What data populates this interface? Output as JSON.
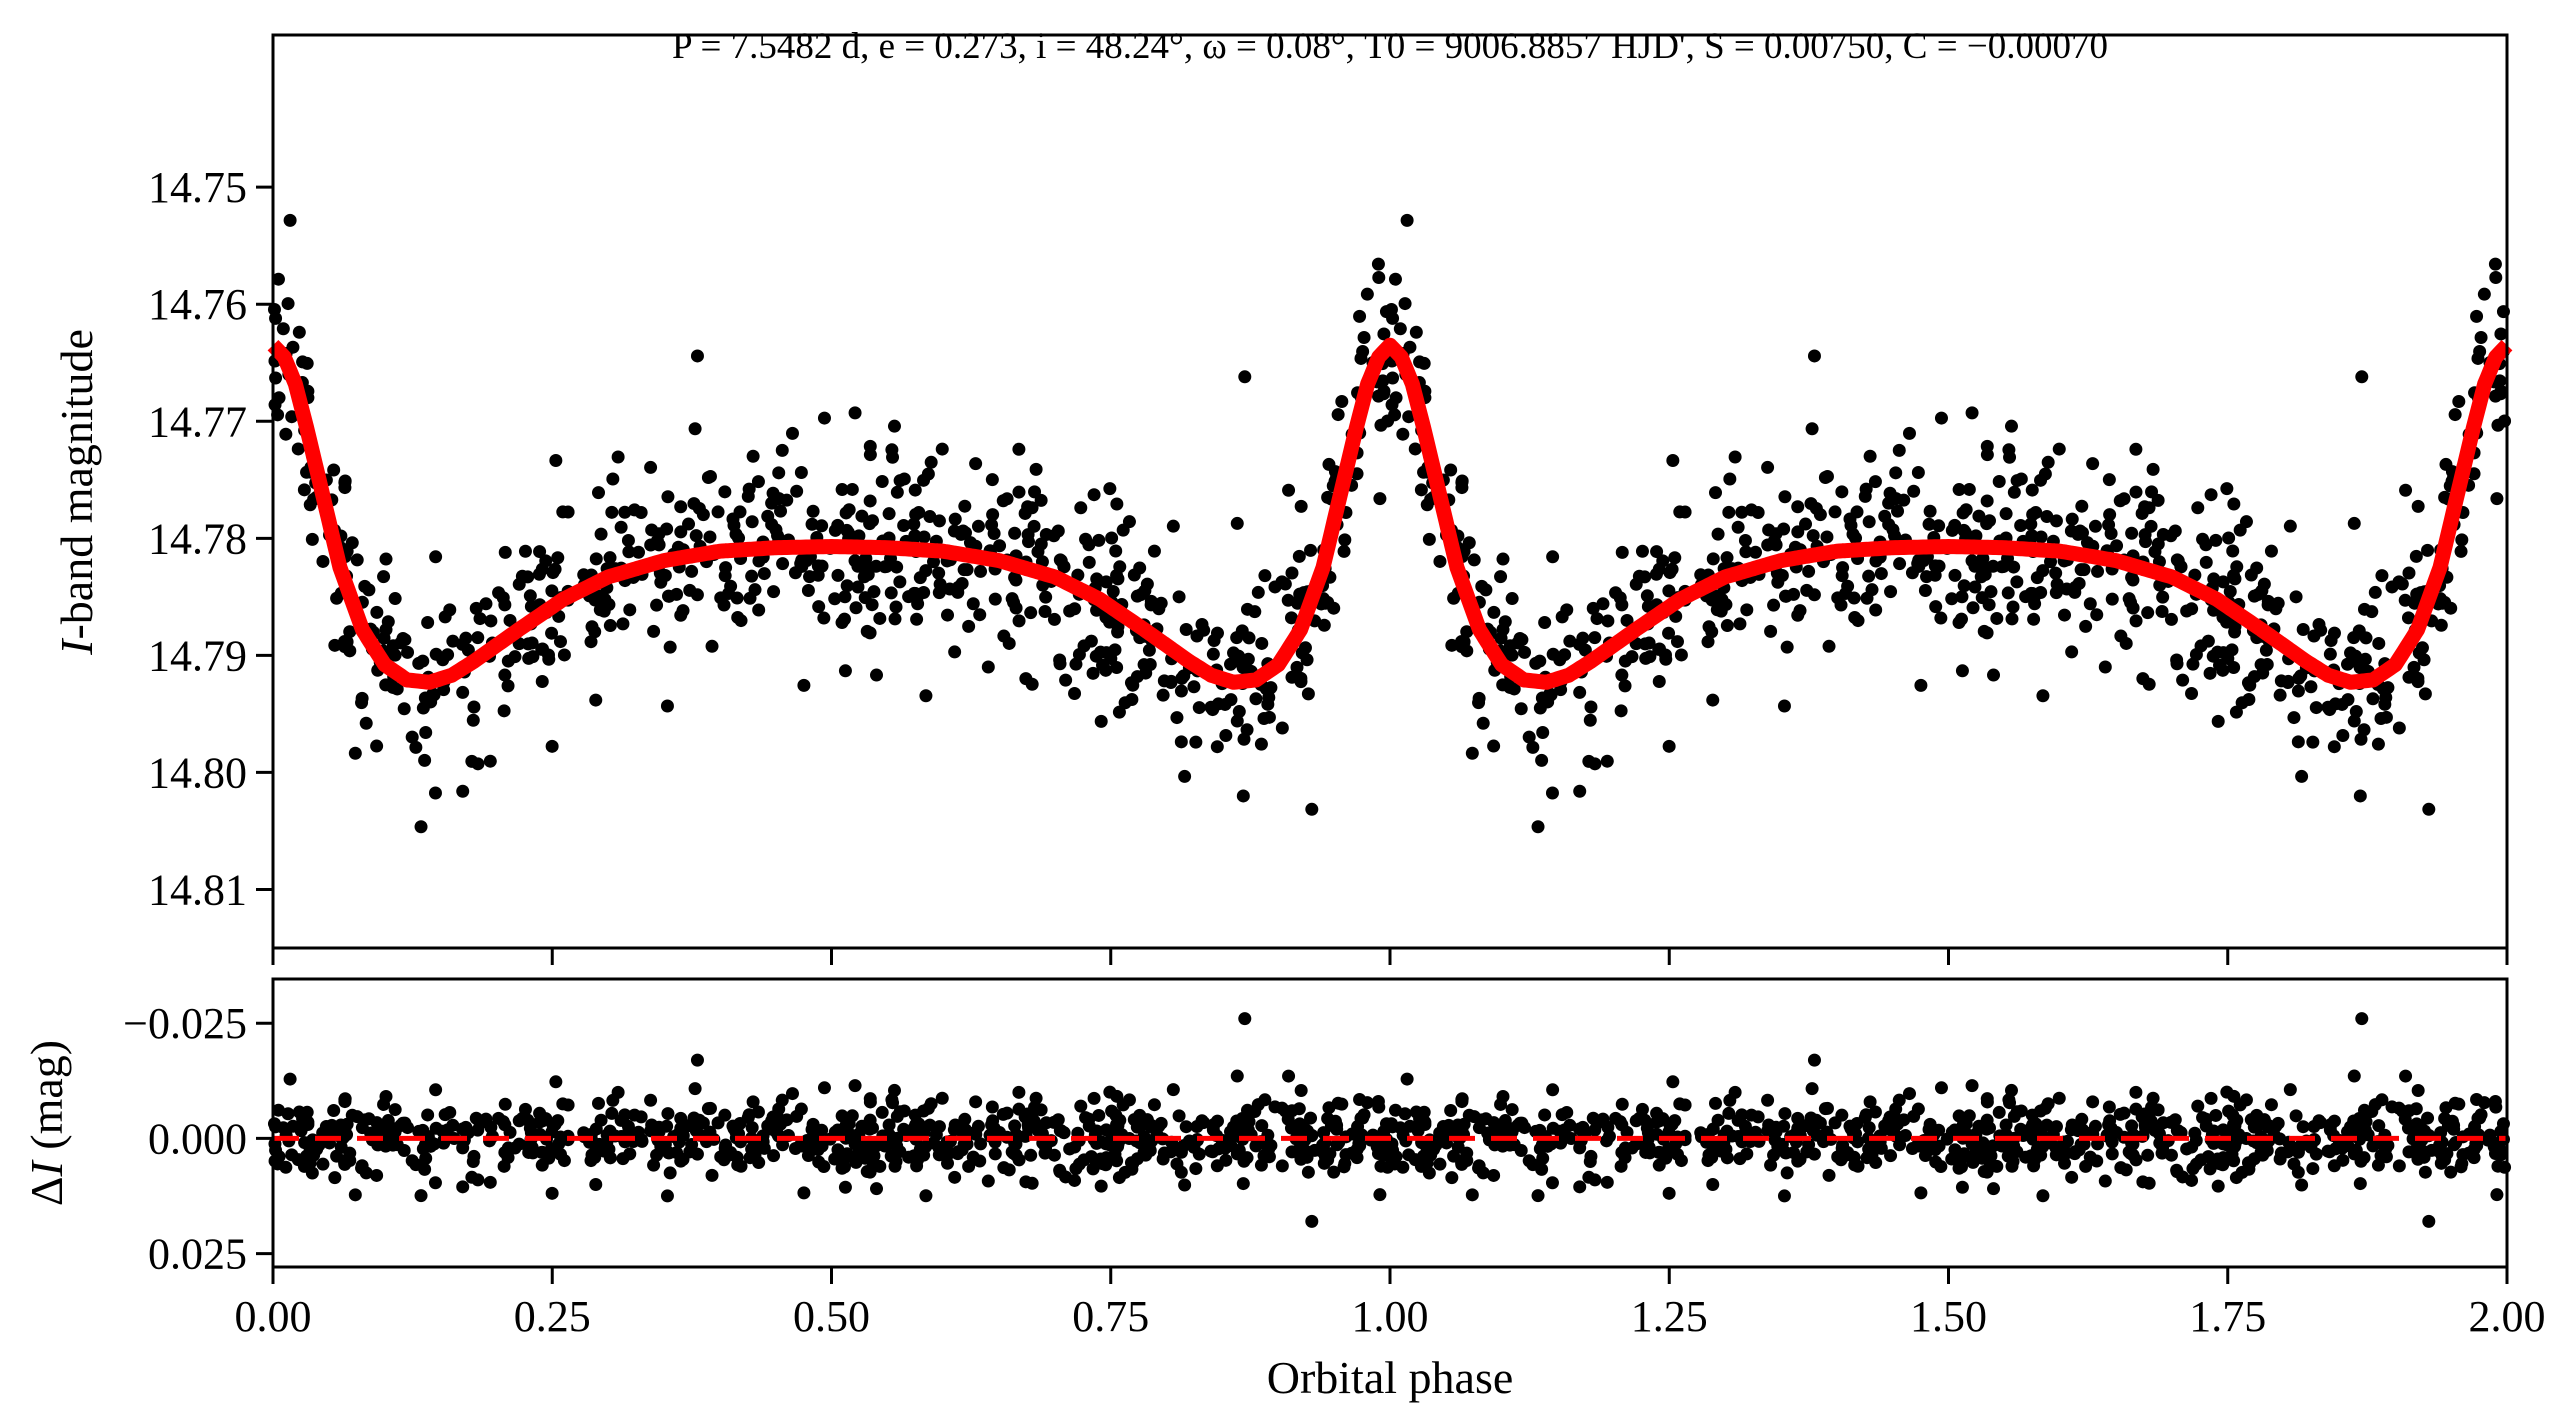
{
  "chart_data": [
    {
      "type": "scatter",
      "panel": "light-curve",
      "title": "P = 7.5482 d, e = 0.273, i = 48.24°, ω = 0.08°, T0 = 9006.8857 HJD', S = 0.00750, C = −0.00070",
      "xlabel": "Orbital phase",
      "ylabel_var": "I",
      "ylabel_rest": "-band magnitude",
      "xlim": [
        0,
        2
      ],
      "ylim": [
        14.815,
        14.737
      ],
      "y_inverted": true,
      "xticks": [
        0,
        0.25,
        0.5,
        0.75,
        1.0,
        1.25,
        1.5,
        1.75,
        2.0
      ],
      "yticks": [
        14.75,
        14.76,
        14.77,
        14.78,
        14.79,
        14.8,
        14.81
      ],
      "ytick_labels": [
        "14.75",
        "14.76",
        "14.77",
        "14.78",
        "14.79",
        "14.80",
        "14.81"
      ],
      "observations": {
        "color": "#000000",
        "n_per_cycle": 760,
        "scatter_sigma_mag": 0.0045,
        "repeated_over_two_cycles": true,
        "notable_points": [
          [
            0.011,
            14.751
          ],
          [
            0.019,
            14.752
          ],
          [
            0.38,
            14.765
          ],
          [
            0.87,
            14.766
          ],
          [
            0.112,
            14.804
          ],
          [
            0.176,
            14.805
          ],
          [
            0.81,
            14.805
          ],
          [
            1.0,
            14.751
          ]
        ]
      },
      "model": {
        "color": "#ff0000",
        "phase": [
          0.0,
          0.01,
          0.02,
          0.03,
          0.04,
          0.05,
          0.06,
          0.08,
          0.1,
          0.12,
          0.14,
          0.16,
          0.18,
          0.22,
          0.26,
          0.3,
          0.35,
          0.4,
          0.45,
          0.5
        ],
        "mag": [
          14.7635,
          14.7645,
          14.7668,
          14.7705,
          14.7745,
          14.7785,
          14.7825,
          14.7878,
          14.7908,
          14.7921,
          14.7923,
          14.7917,
          14.7905,
          14.7878,
          14.7852,
          14.7833,
          14.7819,
          14.7811,
          14.7808,
          14.7807
        ],
        "symmetric_about_phase": 0.5
      }
    },
    {
      "type": "scatter",
      "panel": "residuals",
      "ylabel_delta": "Δ",
      "ylabel_var": "I",
      "ylabel_rest": " (mag)",
      "xlim": [
        0,
        2
      ],
      "ylim": [
        0.0279,
        -0.0346
      ],
      "y_inverted": true,
      "xticks": [
        0,
        0.25,
        0.5,
        0.75,
        1.0,
        1.25,
        1.5,
        1.75,
        2.0
      ],
      "xtick_labels": [
        "0.00",
        "0.25",
        "0.50",
        "0.75",
        "1.00",
        "1.25",
        "1.50",
        "1.75",
        "2.00"
      ],
      "yticks": [
        -0.025,
        0.0,
        0.025
      ],
      "ytick_labels": [
        "−0.025",
        "0.000",
        "0.025"
      ],
      "zero_line": {
        "value": 0,
        "color": "#ff0000",
        "style": "dashed"
      },
      "notable_points": [
        [
          0.87,
          -0.026
        ],
        [
          1.87,
          -0.026
        ],
        [
          0.38,
          -0.017
        ],
        [
          1.38,
          -0.017
        ],
        [
          0.93,
          0.018
        ],
        [
          1.93,
          0.018
        ]
      ]
    }
  ]
}
